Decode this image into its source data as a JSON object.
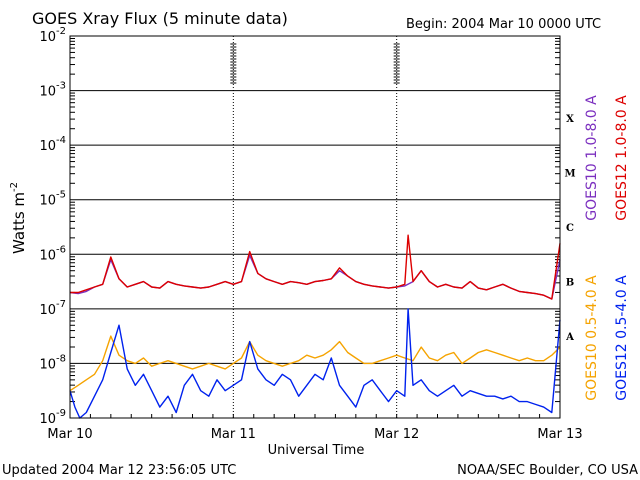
{
  "chart_data": {
    "type": "line",
    "title": "GOES Xray Flux (5 minute data)",
    "begin_label": "Begin:  2004 Mar 10 0000 UTC",
    "ylabel": "Watts m",
    "ylabel_sup": "-2",
    "xlabel": "Universal Time",
    "footer_left": "Updated 2004 Mar 12 23:56:05 UTC",
    "footer_right": "NOAA/SEC Boulder, CO USA",
    "y_scale": "log",
    "ylim": [
      1e-09,
      0.01
    ],
    "xlim": [
      0,
      3
    ],
    "x_unit": "days since 2004 Mar 10 0000 UTC",
    "x_ticks": [
      {
        "value": 0,
        "label": "Mar 10"
      },
      {
        "value": 1,
        "label": "Mar 11"
      },
      {
        "value": 2,
        "label": "Mar 12"
      },
      {
        "value": 3,
        "label": "Mar 13"
      }
    ],
    "y_ticks": [
      {
        "value": -9,
        "base": "10",
        "exp": "-9"
      },
      {
        "value": -8,
        "base": "10",
        "exp": "-8"
      },
      {
        "value": -7,
        "base": "10",
        "exp": "-7"
      },
      {
        "value": -6,
        "base": "10",
        "exp": "-6"
      },
      {
        "value": -5,
        "base": "10",
        "exp": "-5"
      },
      {
        "value": -4,
        "base": "10",
        "exp": "-4"
      },
      {
        "value": -3,
        "base": "10",
        "exp": "-3"
      },
      {
        "value": -2,
        "base": "10",
        "exp": "-2"
      }
    ],
    "flare_classes": [
      {
        "label": "A",
        "value": -7.5
      },
      {
        "label": "B",
        "value": -6.5
      },
      {
        "label": "C",
        "value": -5.5
      },
      {
        "label": "M",
        "value": -4.5
      },
      {
        "label": "X",
        "value": -3.5
      }
    ],
    "legend": [
      {
        "name": "GOES10 1.0-8.0 A",
        "color": "#7b2fbf"
      },
      {
        "name": "GOES12 1.0-8.0 A",
        "color": "#dd0000"
      },
      {
        "name": "GOES10 0.5-4.0 A",
        "color": "#f5a300"
      },
      {
        "name": "GOES12 0.5-4.0 A",
        "color": "#0022ee"
      }
    ],
    "series": [
      {
        "name": "GOES10 1.0-8.0 A",
        "color": "#7b2fbf",
        "x": [
          0,
          0.05,
          0.1,
          0.15,
          0.2,
          0.25,
          0.3,
          0.35,
          0.4,
          0.45,
          0.5,
          0.55,
          0.6,
          0.65,
          0.7,
          0.75,
          0.8,
          0.85,
          0.9,
          0.95,
          1.0,
          1.05,
          1.1,
          1.15,
          1.2,
          1.25,
          1.3,
          1.35,
          1.4,
          1.45,
          1.5,
          1.55,
          1.6,
          1.65,
          1.7,
          1.75,
          1.8,
          1.85,
          1.9,
          1.95,
          2.0,
          2.05,
          2.1,
          2.15,
          2.2,
          2.25,
          2.3,
          2.35,
          2.4,
          2.45,
          2.5,
          2.55,
          2.6,
          2.65,
          2.7,
          2.75,
          2.8,
          2.85,
          2.9,
          2.95,
          3.0
        ],
        "y": [
          -6.7,
          -6.72,
          -6.68,
          -6.6,
          -6.55,
          -6.1,
          -6.45,
          -6.6,
          -6.55,
          -6.5,
          -6.6,
          -6.62,
          -6.5,
          -6.55,
          -6.58,
          -6.6,
          -6.62,
          -6.6,
          -6.55,
          -6.5,
          -6.55,
          -6.5,
          -6.02,
          -6.35,
          -6.45,
          -6.5,
          -6.55,
          -6.5,
          -6.52,
          -6.55,
          -6.5,
          -6.48,
          -6.45,
          -6.3,
          -6.4,
          -6.5,
          -6.55,
          -6.58,
          -6.6,
          -6.62,
          -6.6,
          -6.58,
          -6.5,
          -6.3,
          -6.5,
          -6.6,
          -6.55,
          -6.6,
          -6.62,
          -6.5,
          -6.62,
          -6.65,
          -6.6,
          -6.55,
          -6.62,
          -6.68,
          -6.7,
          -6.72,
          -6.75,
          -6.82,
          -6.1
        ]
      },
      {
        "name": "GOES12 1.0-8.0 A",
        "color": "#dd0000",
        "x": [
          0,
          0.05,
          0.1,
          0.15,
          0.2,
          0.25,
          0.3,
          0.35,
          0.4,
          0.45,
          0.5,
          0.55,
          0.6,
          0.65,
          0.7,
          0.75,
          0.8,
          0.85,
          0.9,
          0.95,
          1.0,
          1.05,
          1.1,
          1.15,
          1.2,
          1.25,
          1.3,
          1.35,
          1.4,
          1.45,
          1.5,
          1.55,
          1.6,
          1.65,
          1.7,
          1.75,
          1.8,
          1.85,
          1.9,
          1.95,
          2.0,
          2.05,
          2.07,
          2.1,
          2.15,
          2.2,
          2.25,
          2.3,
          2.35,
          2.4,
          2.45,
          2.5,
          2.55,
          2.6,
          2.65,
          2.7,
          2.75,
          2.8,
          2.85,
          2.9,
          2.95,
          3.0
        ],
        "y": [
          -6.7,
          -6.7,
          -6.65,
          -6.6,
          -6.55,
          -6.05,
          -6.45,
          -6.6,
          -6.55,
          -6.5,
          -6.6,
          -6.62,
          -6.5,
          -6.55,
          -6.58,
          -6.6,
          -6.62,
          -6.6,
          -6.55,
          -6.5,
          -6.55,
          -6.5,
          -5.95,
          -6.35,
          -6.45,
          -6.5,
          -6.55,
          -6.5,
          -6.52,
          -6.55,
          -6.5,
          -6.48,
          -6.45,
          -6.25,
          -6.4,
          -6.5,
          -6.55,
          -6.58,
          -6.6,
          -6.62,
          -6.6,
          -6.55,
          -5.65,
          -6.5,
          -6.3,
          -6.5,
          -6.6,
          -6.55,
          -6.6,
          -6.62,
          -6.5,
          -6.62,
          -6.65,
          -6.6,
          -6.55,
          -6.62,
          -6.68,
          -6.7,
          -6.72,
          -6.75,
          -6.82,
          -5.8
        ]
      },
      {
        "name": "GOES10 0.5-4.0 A",
        "color": "#f5a300",
        "x": [
          0,
          0.05,
          0.1,
          0.15,
          0.2,
          0.25,
          0.3,
          0.35,
          0.4,
          0.45,
          0.5,
          0.55,
          0.6,
          0.65,
          0.7,
          0.75,
          0.8,
          0.85,
          0.9,
          0.95,
          1.0,
          1.05,
          1.1,
          1.15,
          1.2,
          1.25,
          1.3,
          1.35,
          1.4,
          1.45,
          1.5,
          1.55,
          1.6,
          1.65,
          1.7,
          1.75,
          1.8,
          1.85,
          1.9,
          1.95,
          2.0,
          2.05,
          2.1,
          2.15,
          2.2,
          2.25,
          2.3,
          2.35,
          2.4,
          2.45,
          2.5,
          2.55,
          2.6,
          2.65,
          2.7,
          2.75,
          2.8,
          2.85,
          2.9,
          2.95,
          3.0
        ],
        "y": [
          -8.5,
          -8.4,
          -8.3,
          -8.2,
          -7.95,
          -7.5,
          -7.85,
          -7.95,
          -8.0,
          -7.9,
          -8.05,
          -8.0,
          -7.95,
          -8.0,
          -8.05,
          -8.1,
          -8.05,
          -8.0,
          -8.05,
          -8.1,
          -8.0,
          -7.9,
          -7.6,
          -7.85,
          -7.95,
          -8.0,
          -8.05,
          -8.0,
          -7.95,
          -7.85,
          -7.9,
          -7.85,
          -7.75,
          -7.6,
          -7.8,
          -7.9,
          -8.0,
          -8.0,
          -7.95,
          -7.9,
          -7.85,
          -7.9,
          -7.95,
          -7.7,
          -7.9,
          -7.95,
          -7.85,
          -7.8,
          -8.0,
          -7.9,
          -7.8,
          -7.75,
          -7.8,
          -7.85,
          -7.9,
          -7.95,
          -7.9,
          -7.95,
          -7.95,
          -7.85,
          -7.7
        ]
      },
      {
        "name": "GOES12 0.5-4.0 A",
        "color": "#0022ee",
        "x": [
          0,
          0.03,
          0.06,
          0.1,
          0.15,
          0.2,
          0.25,
          0.3,
          0.35,
          0.4,
          0.45,
          0.5,
          0.55,
          0.6,
          0.65,
          0.7,
          0.75,
          0.8,
          0.85,
          0.9,
          0.95,
          1.0,
          1.05,
          1.1,
          1.15,
          1.2,
          1.25,
          1.3,
          1.35,
          1.4,
          1.45,
          1.5,
          1.55,
          1.6,
          1.65,
          1.7,
          1.75,
          1.8,
          1.85,
          1.9,
          1.95,
          2.0,
          2.05,
          2.07,
          2.1,
          2.15,
          2.2,
          2.25,
          2.3,
          2.35,
          2.4,
          2.45,
          2.5,
          2.55,
          2.6,
          2.65,
          2.7,
          2.75,
          2.8,
          2.85,
          2.9,
          2.95,
          3.0
        ],
        "y": [
          -8.5,
          -8.8,
          -9.0,
          -8.9,
          -8.6,
          -8.3,
          -7.8,
          -7.3,
          -8.1,
          -8.4,
          -8.2,
          -8.5,
          -8.8,
          -8.6,
          -8.9,
          -8.4,
          -8.2,
          -8.5,
          -8.6,
          -8.3,
          -8.5,
          -8.4,
          -8.3,
          -7.6,
          -8.1,
          -8.3,
          -8.4,
          -8.2,
          -8.3,
          -8.6,
          -8.4,
          -8.2,
          -8.3,
          -7.9,
          -8.4,
          -8.6,
          -8.8,
          -8.4,
          -8.3,
          -8.5,
          -8.7,
          -8.5,
          -8.6,
          -7.0,
          -8.4,
          -8.3,
          -8.5,
          -8.6,
          -8.5,
          -8.4,
          -8.6,
          -8.5,
          -8.55,
          -8.6,
          -8.6,
          -8.65,
          -8.6,
          -8.7,
          -8.7,
          -8.75,
          -8.8,
          -8.9,
          -7.2
        ]
      }
    ]
  }
}
